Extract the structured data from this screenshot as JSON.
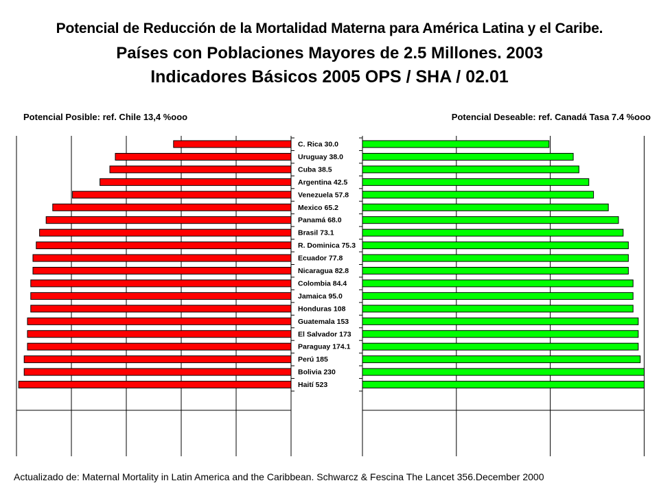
{
  "title": {
    "line1": "Potencial de Reducción de la Mortalidad Materna para América Latina y el Caribe.",
    "line2": "Países con Poblaciones Mayores de 2.5 Millones. 2003",
    "line3": "Indicadores Básicos 2005 OPS / SHA / 02.01"
  },
  "subtitle_left": "Potencial Posible: ref.  Chile 13,4 %ooo",
  "subtitle_right": "Potencial Deseable: ref. Canadá Tasa 7.4 %ooo",
  "footer": "Actualizado de: Maternal Mortality in Latin America and the Caribbean. Schwarcz & Fescina The Lancet 356.December 2000",
  "chart_data": {
    "type": "bar",
    "categories": [
      "C. Rica  30.0",
      "Uruguay  38.0",
      "Cuba 38.5",
      "Argentina  42.5",
      "Venezuela 57.8",
      "Mexico  65.2",
      "Panamá 68.0",
      "Brasil 73.1",
      "R. Dominica 75.3",
      "Ecuador 77.8",
      "Nicaragua 82.8",
      "Colombia 84.4",
      "Jamaica 95.0",
      "Honduras 108",
      "Guatemala 153",
      "El Salvador 173",
      "Paraguay 174.1",
      "Perú 185",
      "Bolivia  230",
      "Haití 523"
    ],
    "series": [
      {
        "side": "left",
        "color": "#ff0000",
        "values": [
          53.5,
          80.0,
          82.5,
          87.0,
          99.5,
          108.5,
          111.5,
          114.5,
          116.0,
          117.5,
          117.5,
          118.5,
          118.5,
          118.5,
          120.0,
          120.0,
          120.0,
          121.5,
          121.5,
          124.0
        ]
      },
      {
        "side": "right",
        "color": "#00ff00",
        "values": [
          75.5,
          85.3,
          87.6,
          91.6,
          93.5,
          99.5,
          103.6,
          105.5,
          107.6,
          107.6,
          107.6,
          109.5,
          109.5,
          109.5,
          111.6,
          111.6,
          111.6,
          112.4,
          114.0,
          114.0
        ]
      }
    ],
    "left_axis": {
      "reversed": true,
      "xlim": [
        0,
        125
      ],
      "gridlines": [
        0,
        25,
        50,
        75,
        100,
        125
      ]
    },
    "right_axis": {
      "xlim": [
        0,
        114
      ],
      "gridlines": [
        0,
        38,
        76,
        114
      ]
    },
    "grid": true
  }
}
